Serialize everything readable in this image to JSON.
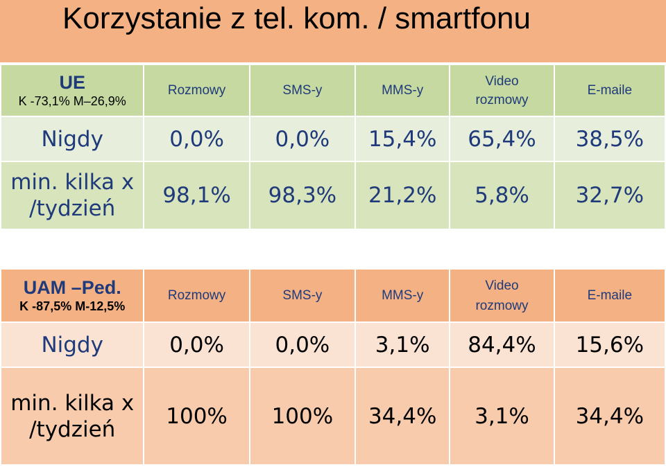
{
  "title": "Korzystanie z tel. kom. / smartfonu",
  "columns": [
    "Rozmowy",
    "SMS-y",
    "MMS-y",
    "Video rozmowy",
    "E-maile"
  ],
  "video_line1": "Video",
  "video_line2": "rozmowy",
  "ue": {
    "group": "UE",
    "stats": "K -73,1% M–26,9%",
    "rows": [
      {
        "label": "Nigdy",
        "values": [
          "0,0%",
          "0,0%",
          "15,4%",
          "65,4%",
          "38,5%"
        ]
      },
      {
        "label_line1": "min. kilka x",
        "label_line2": "/tydzień",
        "values": [
          "98,1%",
          "98,3%",
          "21,2%",
          "5,8%",
          "32,7%"
        ]
      }
    ]
  },
  "uam": {
    "group": "UAM –Ped.",
    "stats": "K -87,5% M-12,5%",
    "rows": [
      {
        "label": "Nigdy",
        "values": [
          "0,0%",
          "0,0%",
          "3,1%",
          "84,4%",
          "15,6%"
        ]
      },
      {
        "label_line1": "min. kilka x",
        "label_line2": "/tydzień",
        "values": [
          "100%",
          "100%",
          "34,4%",
          "3,1%",
          "34,4%"
        ]
      }
    ]
  },
  "colors": {
    "title_band": "#f4b183",
    "ue_header": "#c5d9a0",
    "ue_row1": "#e7eedb",
    "ue_row2": "#d8e4bc",
    "uam_header": "#f4b183",
    "uam_row1": "#fbe3d4",
    "uam_row2": "#f8cbad",
    "text_blue": "#1f3a7a"
  }
}
